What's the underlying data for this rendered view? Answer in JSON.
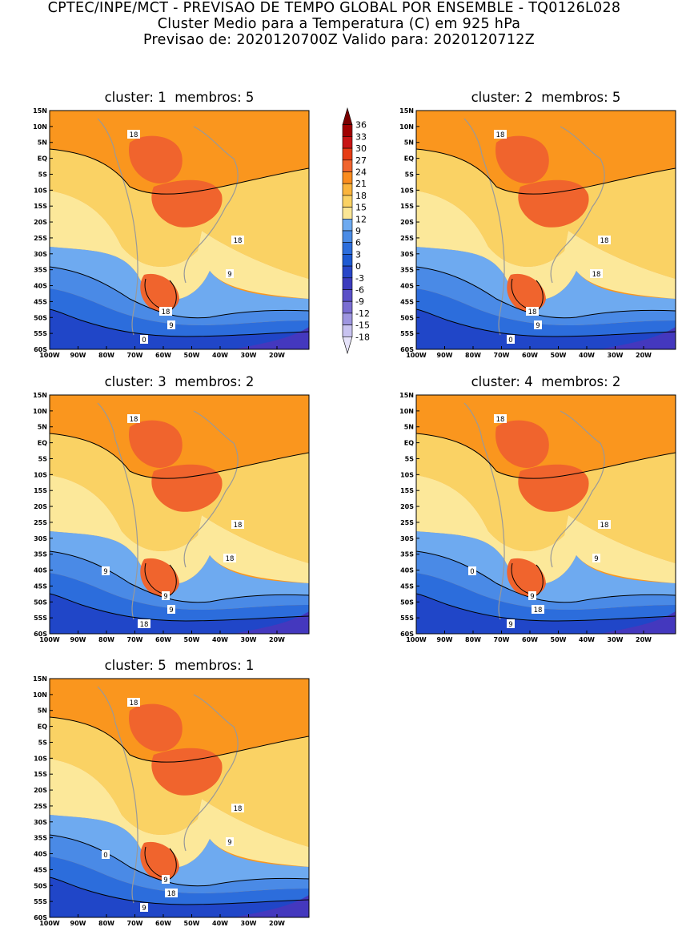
{
  "header": {
    "line1": "CPTEC/INPE/MCT - PREVISAO DE TEMPO GLOBAL POR ENSEMBLE - TQ0126L028",
    "line2": "Cluster Medio para a Temperatura (C) em 925 hPa",
    "line3": "Previsao de: 2020120700Z   Valido para: 2020120712Z"
  },
  "panels": [
    {
      "title": "cluster: 1  membros: 5",
      "labels": [
        {
          "t": "18"
        },
        {
          "t": "18"
        },
        {
          "t": "9"
        },
        {
          "t": "18"
        },
        {
          "t": "9"
        },
        {
          "t": "0"
        }
      ]
    },
    {
      "title": "cluster: 2  membros: 5",
      "labels": [
        {
          "t": "18"
        },
        {
          "t": "18"
        },
        {
          "t": "18"
        },
        {
          "t": "18"
        },
        {
          "t": "9"
        },
        {
          "t": "0"
        }
      ]
    },
    {
      "title": "cluster: 3  membros: 2",
      "labels": [
        {
          "t": "18"
        },
        {
          "t": "18"
        },
        {
          "t": "18"
        },
        {
          "t": "9"
        },
        {
          "t": "9"
        },
        {
          "t": "18"
        },
        {
          "t": "9"
        }
      ]
    },
    {
      "title": "cluster: 4  membros: 2",
      "labels": [
        {
          "t": "18"
        },
        {
          "t": "18"
        },
        {
          "t": "9"
        },
        {
          "t": "9"
        },
        {
          "t": "18"
        },
        {
          "t": "9"
        },
        {
          "t": "0"
        }
      ]
    },
    {
      "title": "cluster: 5  membros: 1",
      "labels": [
        {
          "t": "18"
        },
        {
          "t": "18"
        },
        {
          "t": "9"
        },
        {
          "t": "9"
        },
        {
          "t": "18"
        },
        {
          "t": "9"
        },
        {
          "t": "0"
        }
      ]
    }
  ],
  "lat_labels": [
    "15N",
    "10N",
    "5N",
    "EQ",
    "5S",
    "10S",
    "15S",
    "20S",
    "25S",
    "30S",
    "35S",
    "40S",
    "45S",
    "50S",
    "55S",
    "60S"
  ],
  "lon_labels": [
    "100W",
    "90W",
    "80W",
    "70W",
    "60W",
    "50W",
    "40W",
    "30W",
    "20W"
  ],
  "colorbar": {
    "labels": [
      "36",
      "33",
      "30",
      "27",
      "24",
      "21",
      "18",
      "15",
      "12",
      "9",
      "6",
      "3",
      "0",
      "-3",
      "-6",
      "-9",
      "-12",
      "-15",
      "-18"
    ],
    "colors": [
      "#7a0000",
      "#a00000",
      "#c81414",
      "#e63c14",
      "#f0642d",
      "#fa8c1e",
      "#fab43c",
      "#fad264",
      "#fae696",
      "#6eaaf0",
      "#4b8ce6",
      "#2d6edc",
      "#1e5ad2",
      "#2846c8",
      "#3c3cbe",
      "#5a50c8",
      "#7a6ed2",
      "#9e96e0",
      "#c8c3f0",
      "#e6e3fa"
    ]
  },
  "field_colors": {
    "c24": "#f0642d",
    "c21": "#fa961e",
    "c18": "#fbb73e",
    "c15": "#fad264",
    "c12": "#fce89a",
    "c9": "#6eaaf0",
    "c6": "#4a8ae6",
    "c3": "#2c6ddc",
    "c0": "#2046c8",
    "cm3": "#4438be",
    "land": "#999999"
  }
}
